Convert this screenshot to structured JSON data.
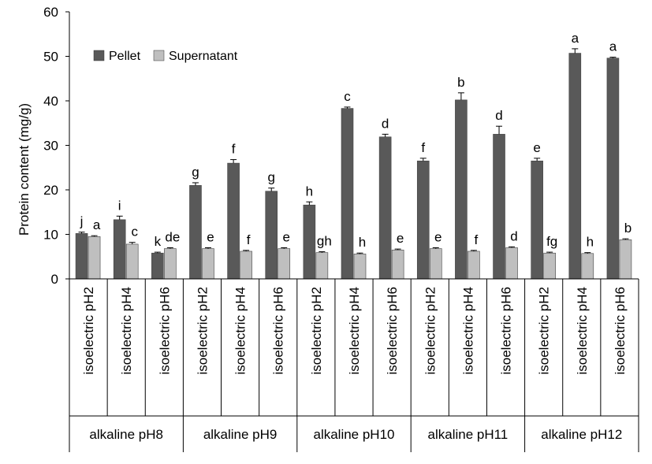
{
  "chart_data": {
    "type": "bar",
    "ylabel": "Protein content (mg/g)",
    "ylim": [
      0,
      60
    ],
    "yticks": [
      0,
      10,
      20,
      30,
      40,
      50,
      60
    ],
    "legend": {
      "placement": "top-left"
    },
    "categories": [
      "isoelectric pH2",
      "isoelectric pH4",
      "isoelectric pH6",
      "isoelectric pH2",
      "isoelectric pH4",
      "isoelectric pH6",
      "isoelectric pH2",
      "isoelectric pH4",
      "isoelectric pH6",
      "isoelectric pH2",
      "isoelectric pH4",
      "isoelectric pH6",
      "isoelectric pH2",
      "isoelectric pH4",
      "isoelectric pH6"
    ],
    "groups": [
      "alkaline pH8",
      "alkaline pH9",
      "alkaline pH10",
      "alkaline pH11",
      "alkaline pH12"
    ],
    "series": [
      {
        "name": "Pellet",
        "color": "#595959",
        "values": [
          10.2,
          13.3,
          5.8,
          21.0,
          26.0,
          19.7,
          16.6,
          38.3,
          31.9,
          26.5,
          40.2,
          32.5,
          26.5,
          50.7,
          49.6
        ],
        "errors": [
          0.3,
          0.8,
          0.2,
          0.6,
          0.8,
          0.7,
          0.7,
          0.3,
          0.6,
          0.6,
          1.6,
          1.8,
          0.6,
          1.0,
          0.2
        ],
        "letters": [
          "j",
          "i",
          "k",
          "g",
          "f",
          "g",
          "h",
          "c",
          "d",
          "f",
          "b",
          "d",
          "e",
          "a",
          "a"
        ]
      },
      {
        "name": "Supernatant",
        "color": "#bfbfbf",
        "values": [
          9.5,
          7.8,
          6.8,
          6.8,
          6.2,
          6.8,
          5.9,
          5.6,
          6.5,
          6.8,
          6.2,
          7.0,
          5.8,
          5.7,
          8.8
        ],
        "errors": [
          0.2,
          0.4,
          0.2,
          0.2,
          0.2,
          0.2,
          0.2,
          0.2,
          0.2,
          0.2,
          0.2,
          0.2,
          0.2,
          0.2,
          0.2
        ],
        "letters": [
          "a",
          "c",
          "de",
          "e",
          "f",
          "e",
          "gh",
          "h",
          "e",
          "e",
          "f",
          "d",
          "fg",
          "h",
          "b"
        ]
      }
    ]
  }
}
